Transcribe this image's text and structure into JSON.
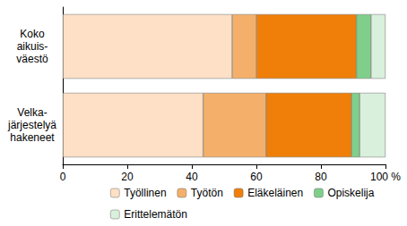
{
  "chart_data": {
    "type": "bar",
    "orientation": "horizontal",
    "stacked": true,
    "categories": [
      "Koko\naikuis-\nväestö",
      "Velka-\njärjestelyä\nhakeneet"
    ],
    "series": [
      {
        "name": "Työllinen",
        "color": "#fde0c5",
        "values": [
          52.5,
          43.5
        ]
      },
      {
        "name": "Työtön",
        "color": "#f4b06a",
        "values": [
          7.5,
          19.5
        ]
      },
      {
        "name": "Eläkeläinen",
        "color": "#f07f09",
        "values": [
          31,
          26.5
        ]
      },
      {
        "name": "Opiskelija",
        "color": "#7fcf8a",
        "values": [
          4.5,
          2.5
        ]
      },
      {
        "name": "Erittelemätön",
        "color": "#d9f0dc",
        "values": [
          4.5,
          8
        ]
      }
    ],
    "xlim": [
      0,
      100
    ],
    "xticks": [
      0,
      20,
      40,
      60,
      80,
      {
        "value": 100,
        "label": "100 %"
      }
    ],
    "grid": false,
    "legend": "bottom"
  }
}
